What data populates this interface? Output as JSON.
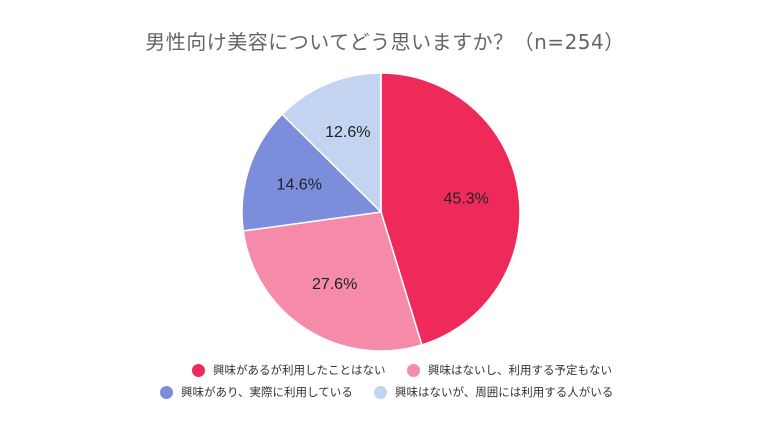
{
  "chart_data": {
    "type": "pie",
    "title": "男性向け美容についてどう思いますか？（n=254）",
    "unit": "%",
    "slices": [
      {
        "label": "興味があるが利用したことはない",
        "value": 45.3,
        "display": "45.3%",
        "color": "#ee2a5b"
      },
      {
        "label": "興味はないし、利用する予定もない",
        "value": 27.6,
        "display": "27.6%",
        "color": "#f58aaa"
      },
      {
        "label": "興味があり、実際に利用している",
        "value": 14.6,
        "display": "14.6%",
        "color": "#7b8ddb"
      },
      {
        "label": "興味はないが、周囲には利用する人がいる",
        "value": 12.6,
        "display": "12.6%",
        "color": "#c3d4f0"
      }
    ],
    "start_angle_deg": 0,
    "direction": "clockwise",
    "legend_placement": "bottom"
  }
}
